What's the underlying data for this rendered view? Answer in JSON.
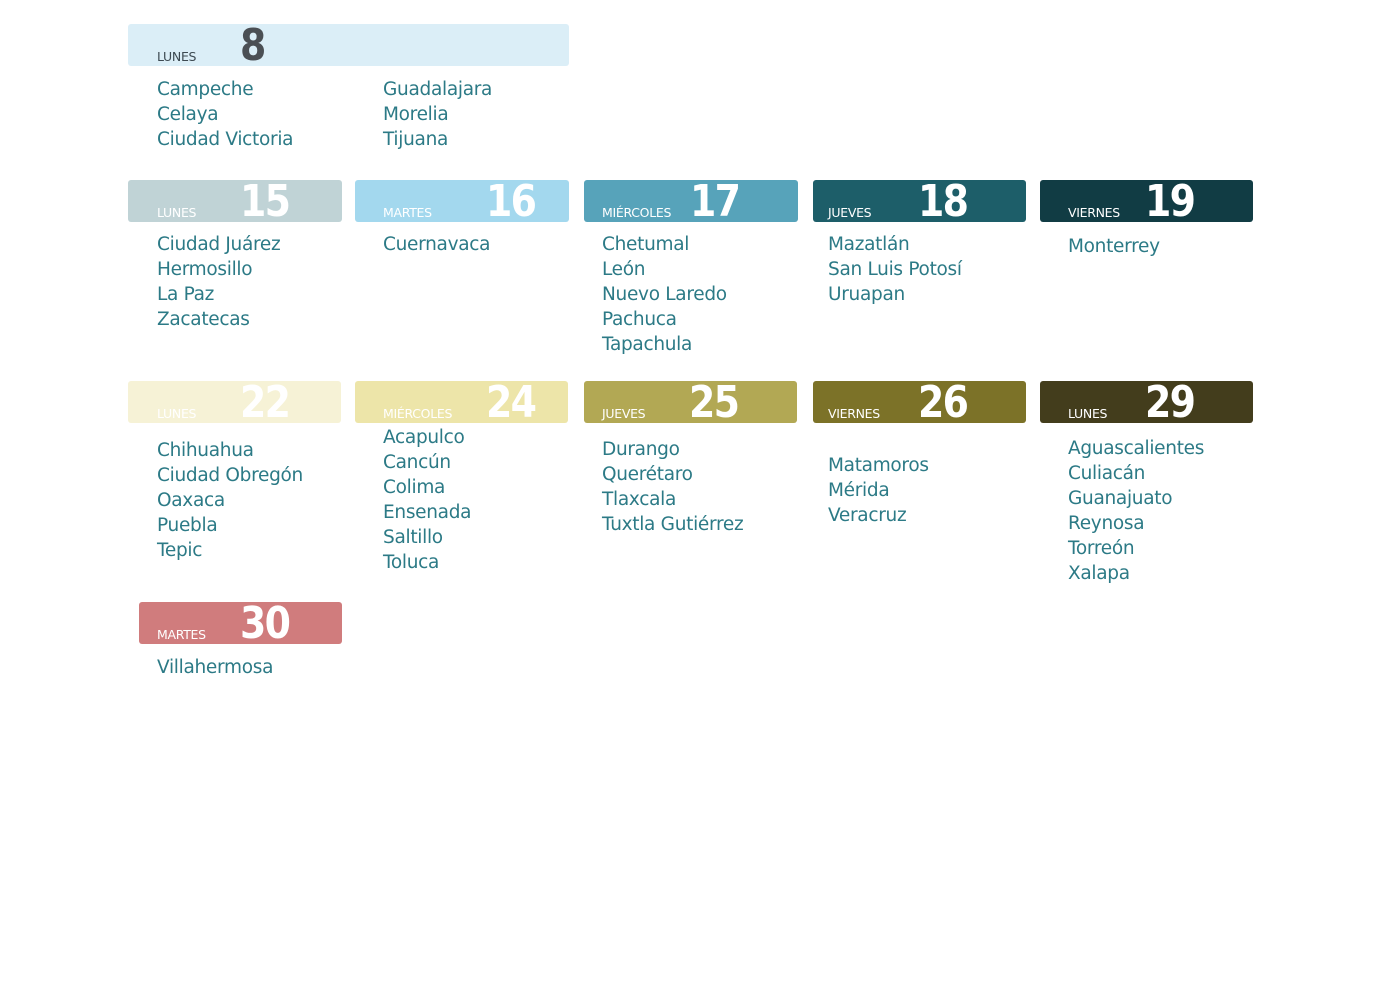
{
  "days": [
    {
      "id": "lunes-8",
      "weekday": "LUNES",
      "day": "8",
      "bg": "#dbeef7",
      "weekday_color": "#3d4a52",
      "number_color": "#4a4f54",
      "cities": [
        "Campeche",
        "Celaya",
        "Ciudad Victoria"
      ],
      "cities_col2": [
        "Guadalajara",
        "Morelia",
        "Tijuana"
      ]
    },
    {
      "id": "lunes-15",
      "weekday": "LUNES",
      "day": "15",
      "bg": "#c0d3d6",
      "weekday_color": "#ffffff",
      "number_color": "#ffffff",
      "cities": [
        "Ciudad Juárez",
        "Hermosillo",
        "La Paz",
        "Zacatecas"
      ]
    },
    {
      "id": "martes-16",
      "weekday": "MARTES",
      "day": "16",
      "bg": "#a3d8ee",
      "weekday_color": "#ffffff",
      "number_color": "#ffffff",
      "cities": [
        "Cuernavaca"
      ]
    },
    {
      "id": "miercoles-17",
      "weekday": "MIÉRCOLES",
      "day": "17",
      "bg": "#57a3ba",
      "weekday_color": "#ffffff",
      "number_color": "#ffffff",
      "cities": [
        "Chetumal",
        "León",
        "Nuevo Laredo",
        "Pachuca",
        "Tapachula"
      ]
    },
    {
      "id": "jueves-18",
      "weekday": "JUEVES",
      "day": "18",
      "bg": "#1d5e69",
      "weekday_color": "#ffffff",
      "number_color": "#ffffff",
      "cities": [
        "Mazatlán",
        "San Luis Potosí",
        "Uruapan"
      ]
    },
    {
      "id": "viernes-19",
      "weekday": "VIERNES",
      "day": "19",
      "bg": "#113c44",
      "weekday_color": "#ffffff",
      "number_color": "#ffffff",
      "cities": [
        "Monterrey"
      ]
    },
    {
      "id": "lunes-22",
      "weekday": "LUNES",
      "day": "22",
      "bg": "#f6f2d6",
      "weekday_color": "#ffffff",
      "number_color": "#ffffff",
      "cities": [
        "Chihuahua",
        "Ciudad Obregón",
        "Oaxaca",
        "Puebla",
        "Tepic"
      ]
    },
    {
      "id": "miercoles-24",
      "weekday": "MIÉRCOLES",
      "day": "24",
      "bg": "#ede5a9",
      "weekday_color": "#ffffff",
      "number_color": "#ffffff",
      "cities": [
        "Acapulco",
        "Cancún",
        "Colima",
        "Ensenada",
        "Saltillo",
        "Toluca"
      ]
    },
    {
      "id": "jueves-25",
      "weekday": "JUEVES",
      "day": "25",
      "bg": "#b2a854",
      "weekday_color": "#ffffff",
      "number_color": "#ffffff",
      "cities": [
        "Durango",
        "Querétaro",
        "Tlaxcala",
        "Tuxtla Gutiérrez"
      ]
    },
    {
      "id": "viernes-26",
      "weekday": "VIERNES",
      "day": "26",
      "bg": "#7c7228",
      "weekday_color": "#ffffff",
      "number_color": "#ffffff",
      "cities": [
        "Matamoros",
        "Mérida",
        "Veracruz"
      ]
    },
    {
      "id": "lunes-29",
      "weekday": "LUNES",
      "day": "29",
      "bg": "#433d1c",
      "weekday_color": "#ffffff",
      "number_color": "#ffffff",
      "cities": [
        "Aguascalientes",
        "Culiacán",
        "Guanajuato",
        "Reynosa",
        "Torreón",
        "Xalapa"
      ]
    },
    {
      "id": "martes-30",
      "weekday": "MARTES",
      "day": "30",
      "bg": "#d07c7d",
      "weekday_color": "#ffffff",
      "number_color": "#ffffff",
      "cities": [
        "Villahermosa"
      ]
    }
  ]
}
